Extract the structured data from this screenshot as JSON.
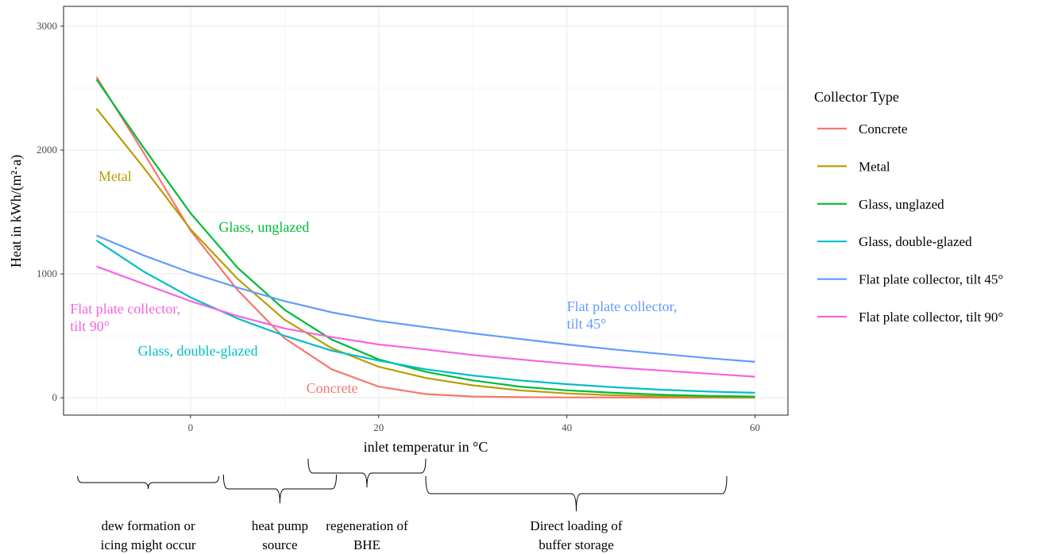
{
  "chart_data": {
    "type": "line",
    "xlabel": "inlet temperatur in °C",
    "ylabel": "Heat in kWh/(m²·a)",
    "xlim": [
      -13.5,
      63.5
    ],
    "ylim": [
      -140,
      3160
    ],
    "x_ticks": [
      0,
      20,
      40,
      60
    ],
    "y_ticks": [
      0,
      1000,
      2000,
      3000
    ],
    "grid": true,
    "legend_title": "Collector Type",
    "legend_position": "right",
    "x": [
      -10,
      -5,
      0,
      5,
      10,
      15,
      20,
      25,
      30,
      35,
      40,
      45,
      50,
      55,
      60
    ],
    "series": [
      {
        "name": "Concrete",
        "color": "#F8766D",
        "values": [
          2590,
          1980,
          1350,
          870,
          480,
          230,
          90,
          30,
          10,
          5,
          3,
          2,
          1,
          1,
          0
        ]
      },
      {
        "name": "Metal",
        "color": "#B79F00",
        "values": [
          2335,
          1860,
          1360,
          960,
          630,
          400,
          250,
          160,
          100,
          60,
          35,
          20,
          12,
          6,
          3
        ]
      },
      {
        "name": "Glass, unglazed",
        "color": "#00BA38",
        "values": [
          2570,
          2020,
          1490,
          1050,
          710,
          470,
          310,
          210,
          140,
          90,
          60,
          40,
          25,
          15,
          10
        ]
      },
      {
        "name": "Glass, double-glazed",
        "color": "#00BFC4",
        "values": [
          1270,
          1020,
          810,
          640,
          500,
          380,
          300,
          230,
          180,
          140,
          110,
          85,
          65,
          50,
          40
        ]
      },
      {
        "name": "Flat plate collector, tilt 45°",
        "color": "#619CFF",
        "values": [
          1310,
          1150,
          1010,
          890,
          780,
          690,
          620,
          570,
          520,
          475,
          430,
          390,
          355,
          320,
          290
        ]
      },
      {
        "name": "Flat plate collector, tilt 90°",
        "color": "#F564E3",
        "values": [
          1060,
          920,
          780,
          660,
          560,
          490,
          430,
          390,
          345,
          310,
          275,
          245,
          220,
          195,
          170
        ]
      }
    ],
    "annotations": [
      {
        "text": "Metal",
        "x": -9.8,
        "y": 1750,
        "color": "#B79F00"
      },
      {
        "text": "Glass, unglazed",
        "x": 3,
        "y": 1340,
        "color": "#00BA38"
      },
      {
        "text": "Flat plate collector,",
        "x": -12.8,
        "y": 680,
        "color": "#F564E3"
      },
      {
        "text": "tilt 90°",
        "x": -12.8,
        "y": 540,
        "color": "#F564E3"
      },
      {
        "text": "Glass, double-glazed",
        "x": -5.6,
        "y": 340,
        "color": "#00BFC4"
      },
      {
        "text": "Flat plate collector,",
        "x": 40,
        "y": 700,
        "color": "#619CFF"
      },
      {
        "text": "tilt 45°",
        "x": 40,
        "y": 560,
        "color": "#619CFF"
      },
      {
        "text": "Concrete",
        "x": 12.3,
        "y": 40,
        "color": "#F8766D"
      }
    ]
  },
  "ranges": [
    {
      "name": "dew",
      "x_start": -12,
      "x_end": 3,
      "lines": [
        "dew formation or",
        "icing might occur"
      ]
    },
    {
      "name": "heat-pump",
      "x_start": 3.5,
      "x_end": 15.5,
      "lines": [
        "heat pump",
        "source"
      ]
    },
    {
      "name": "regeneration",
      "x_start": 12.5,
      "x_end": 25,
      "lines": [
        "regeneration of",
        "BHE"
      ]
    },
    {
      "name": "direct-loading",
      "x_start": 25,
      "x_end": 57,
      "lines": [
        "Direct loading of",
        "buffer storage"
      ]
    }
  ]
}
